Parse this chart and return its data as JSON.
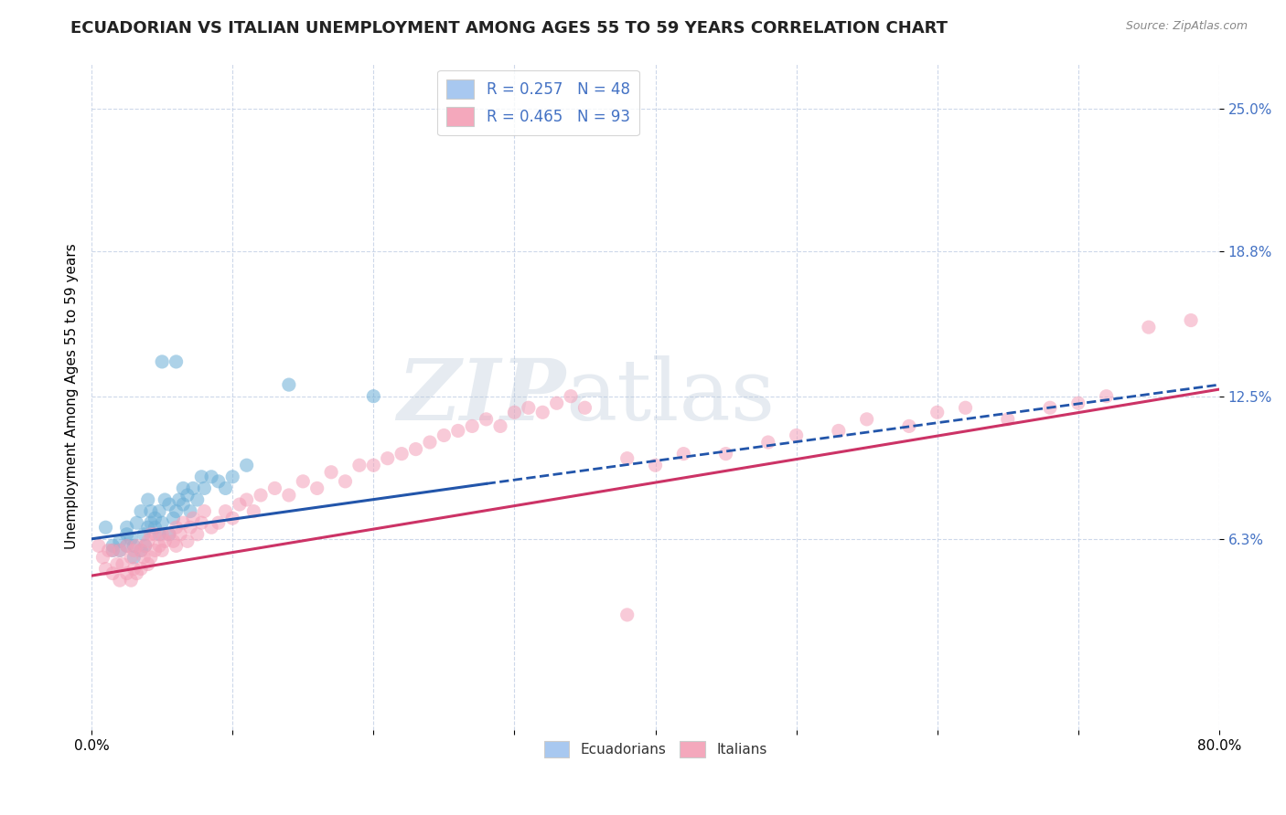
{
  "title": "ECUADORIAN VS ITALIAN UNEMPLOYMENT AMONG AGES 55 TO 59 YEARS CORRELATION CHART",
  "source": "Source: ZipAtlas.com",
  "ylabel": "Unemployment Among Ages 55 to 59 years",
  "xlim": [
    0.0,
    0.8
  ],
  "ylim": [
    -0.02,
    0.27
  ],
  "ytick_labels": [
    "6.3%",
    "12.5%",
    "18.8%",
    "25.0%"
  ],
  "ytick_values": [
    0.063,
    0.125,
    0.188,
    0.25
  ],
  "xtick_labels": [
    "0.0%",
    "80.0%"
  ],
  "xtick_values": [
    0.0,
    0.8
  ],
  "watermark": "ZIPatlas",
  "ecuadorians": {
    "color": "#6baed6",
    "alpha": 0.55,
    "size": 120,
    "x": [
      0.01,
      0.015,
      0.015,
      0.02,
      0.02,
      0.025,
      0.025,
      0.025,
      0.028,
      0.03,
      0.03,
      0.032,
      0.035,
      0.035,
      0.037,
      0.038,
      0.04,
      0.04,
      0.042,
      0.042,
      0.045,
      0.045,
      0.048,
      0.048,
      0.05,
      0.052,
      0.055,
      0.055,
      0.058,
      0.06,
      0.062,
      0.065,
      0.065,
      0.068,
      0.07,
      0.072,
      0.075,
      0.078,
      0.08,
      0.085,
      0.09,
      0.095,
      0.1,
      0.11,
      0.14,
      0.2,
      0.05,
      0.06
    ],
    "y": [
      0.068,
      0.06,
      0.058,
      0.062,
      0.058,
      0.065,
      0.06,
      0.068,
      0.063,
      0.055,
      0.06,
      0.07,
      0.058,
      0.075,
      0.065,
      0.06,
      0.068,
      0.08,
      0.07,
      0.075,
      0.068,
      0.072,
      0.075,
      0.065,
      0.07,
      0.08,
      0.078,
      0.065,
      0.072,
      0.075,
      0.08,
      0.078,
      0.085,
      0.082,
      0.075,
      0.085,
      0.08,
      0.09,
      0.085,
      0.09,
      0.088,
      0.085,
      0.09,
      0.095,
      0.13,
      0.125,
      0.14,
      0.14
    ],
    "trendline_solid": {
      "x": [
        0.0,
        0.28
      ],
      "y": [
        0.063,
        0.087
      ],
      "color": "#2255aa",
      "linestyle": "-",
      "linewidth": 2.2
    },
    "trendline_dashed": {
      "x": [
        0.28,
        0.8
      ],
      "y": [
        0.087,
        0.13
      ],
      "color": "#2255aa",
      "linestyle": "--",
      "linewidth": 2.0
    }
  },
  "italians": {
    "color": "#f4a0b8",
    "alpha": 0.55,
    "size": 120,
    "x": [
      0.005,
      0.008,
      0.01,
      0.012,
      0.015,
      0.015,
      0.018,
      0.02,
      0.02,
      0.022,
      0.025,
      0.025,
      0.028,
      0.028,
      0.03,
      0.03,
      0.032,
      0.032,
      0.035,
      0.035,
      0.037,
      0.038,
      0.04,
      0.04,
      0.042,
      0.042,
      0.045,
      0.045,
      0.048,
      0.05,
      0.05,
      0.052,
      0.055,
      0.058,
      0.06,
      0.06,
      0.063,
      0.065,
      0.068,
      0.07,
      0.072,
      0.075,
      0.078,
      0.08,
      0.085,
      0.09,
      0.095,
      0.1,
      0.105,
      0.11,
      0.115,
      0.12,
      0.13,
      0.14,
      0.15,
      0.16,
      0.17,
      0.18,
      0.19,
      0.2,
      0.21,
      0.22,
      0.23,
      0.24,
      0.25,
      0.26,
      0.27,
      0.28,
      0.29,
      0.3,
      0.31,
      0.32,
      0.33,
      0.34,
      0.35,
      0.38,
      0.4,
      0.42,
      0.45,
      0.48,
      0.5,
      0.53,
      0.55,
      0.58,
      0.6,
      0.62,
      0.65,
      0.68,
      0.7,
      0.72,
      0.75,
      0.78,
      0.38
    ],
    "y": [
      0.06,
      0.055,
      0.05,
      0.058,
      0.048,
      0.058,
      0.052,
      0.045,
      0.058,
      0.052,
      0.048,
      0.06,
      0.045,
      0.055,
      0.05,
      0.058,
      0.048,
      0.06,
      0.05,
      0.058,
      0.055,
      0.06,
      0.052,
      0.062,
      0.055,
      0.065,
      0.058,
      0.065,
      0.06,
      0.058,
      0.065,
      0.062,
      0.065,
      0.062,
      0.068,
      0.06,
      0.065,
      0.07,
      0.062,
      0.068,
      0.072,
      0.065,
      0.07,
      0.075,
      0.068,
      0.07,
      0.075,
      0.072,
      0.078,
      0.08,
      0.075,
      0.082,
      0.085,
      0.082,
      0.088,
      0.085,
      0.092,
      0.088,
      0.095,
      0.095,
      0.098,
      0.1,
      0.102,
      0.105,
      0.108,
      0.11,
      0.112,
      0.115,
      0.112,
      0.118,
      0.12,
      0.118,
      0.122,
      0.125,
      0.12,
      0.098,
      0.095,
      0.1,
      0.1,
      0.105,
      0.108,
      0.11,
      0.115,
      0.112,
      0.118,
      0.12,
      0.115,
      0.12,
      0.122,
      0.125,
      0.155,
      0.158,
      0.03
    ],
    "trendline": {
      "x": [
        0.0,
        0.8
      ],
      "y": [
        0.047,
        0.128
      ],
      "color": "#cc3366",
      "linestyle": "-",
      "linewidth": 2.2
    }
  },
  "background_color": "#ffffff",
  "grid_color": "#c8d4e8",
  "title_fontsize": 13,
  "axis_label_fontsize": 11,
  "tick_fontsize": 11,
  "legend_r_n": [
    {
      "r": "0.257",
      "n": "48",
      "color": "#a8c8f0"
    },
    {
      "r": "0.465",
      "n": "93",
      "color": "#f4a8bc"
    }
  ]
}
